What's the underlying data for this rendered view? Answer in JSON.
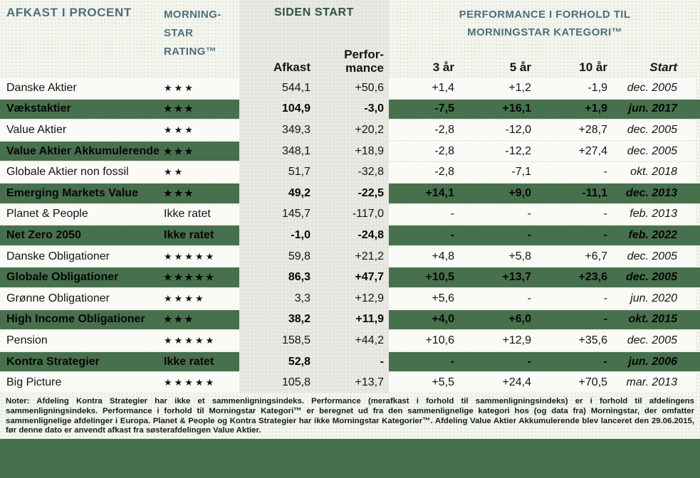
{
  "header": {
    "afkast_title": "AFKAST I PROCENT",
    "rating_title": "MORNING-\nSTAR\nRATING™",
    "siden_start_title": "SIDEN START",
    "performance_group_title": "PERFORMANCE I FORHOLD TIL\nMORNINGSTAR KATEGORI™",
    "sub": {
      "afkast": "Afkast",
      "performance": "Perfor-\nmance",
      "y3": "3 år",
      "y5": "5 år",
      "y10": "10 år",
      "start": "Start"
    }
  },
  "table": {
    "rows": [
      {
        "name": "Danske Aktier",
        "rating": "★★★",
        "afkast": "544,1",
        "performance": "+50,6",
        "y3": "+1,4",
        "y5": "+1,2",
        "y10": "-1,9",
        "start": "dec. 2005",
        "highlight": "none"
      },
      {
        "name": "Vækstaktier",
        "rating": "★★★",
        "afkast": "104,9",
        "performance": "-3,0",
        "y3": "-7,5",
        "y5": "+16,1",
        "y10": "+1,9",
        "start": "jun. 2017",
        "highlight": "green"
      },
      {
        "name": "Value Aktier",
        "rating": "★★★",
        "afkast": "349,3",
        "performance": "+20,2",
        "y3": "-2,8",
        "y5": "-12,0",
        "y10": "+28,7",
        "start": "dec. 2005",
        "highlight": "none"
      },
      {
        "name": "Value Aktier Akkumulerende",
        "rating": "★★★",
        "afkast": "348,1",
        "performance": "+18,9",
        "y3": "-2,8",
        "y5": "-12,2",
        "y10": "+27,4",
        "start": "dec. 2005",
        "highlight": "green-left"
      },
      {
        "name": "Globale Aktier non fossil",
        "rating": "★★",
        "afkast": "51,7",
        "performance": "-32,8",
        "y3": "-2,8",
        "y5": "-7,1",
        "y10": "-",
        "start": "okt. 2018",
        "highlight": "none"
      },
      {
        "name": "Emerging Markets Value",
        "rating": "★★★",
        "afkast": "49,2",
        "performance": "-22,5",
        "y3": "+14,1",
        "y5": "+9,0",
        "y10": "-11,1",
        "start": "dec. 2013",
        "highlight": "green"
      },
      {
        "name": "Planet & People",
        "rating": "Ikke ratet",
        "afkast": "145,7",
        "performance": "-117,0",
        "y3": "-",
        "y5": "-",
        "y10": "-",
        "start": "feb. 2013",
        "highlight": "none"
      },
      {
        "name": "Net Zero 2050",
        "rating": "Ikke ratet",
        "afkast": "-1,0",
        "performance": "-24,8",
        "y3": "-",
        "y5": "-",
        "y10": "-",
        "start": "feb. 2022",
        "highlight": "green"
      },
      {
        "name": "Danske Obligationer",
        "rating": "★★★★★",
        "afkast": "59,8",
        "performance": "+21,2",
        "y3": "+4,8",
        "y5": "+5,8",
        "y10": "+6,7",
        "start": "dec. 2005",
        "highlight": "none"
      },
      {
        "name": "Globale Obligationer",
        "rating": "★★★★★",
        "afkast": "86,3",
        "performance": "+47,7",
        "y3": "+10,5",
        "y5": "+13,7",
        "y10": "+23,6",
        "start": "dec. 2005",
        "highlight": "green"
      },
      {
        "name": "Grønne Obligationer",
        "rating": "★★★★",
        "afkast": "3,3",
        "performance": "+12,9",
        "y3": "+5,6",
        "y5": "-",
        "y10": "-",
        "start": "jun. 2020",
        "highlight": "none"
      },
      {
        "name": "High Income Obligationer",
        "rating": "★★★",
        "afkast": "38,2",
        "performance": "+11,9",
        "y3": "+4,0",
        "y5": "+6,0",
        "y10": "-",
        "start": "okt. 2015",
        "highlight": "green"
      },
      {
        "name": "Pension",
        "rating": "★★★★★",
        "afkast": "158,5",
        "performance": "+44,2",
        "y3": "+10,6",
        "y5": "+12,9",
        "y10": "+35,6",
        "start": "dec. 2005",
        "highlight": "none"
      },
      {
        "name": "Kontra Strategier",
        "rating": "Ikke ratet",
        "afkast": "52,8",
        "performance": "-",
        "y3": "-",
        "y5": "-",
        "y10": "-",
        "start": "jun. 2006",
        "highlight": "green"
      },
      {
        "name": "Big Picture",
        "rating": "★★★★★",
        "afkast": "105,8",
        "performance": "+13,7",
        "y3": "+5,5",
        "y5": "+24,4",
        "y10": "+70,5",
        "start": "mar. 2013",
        "highlight": "none"
      }
    ]
  },
  "notes": "Noter: Afdeling Kontra Strategier har ikke et sammenligningsindeks. Performance (merafkast i forhold til sammenligningsindeks) er i forhold til afdelingens sammenligningsindeks. Performance i forhold til Morningstar Kategori™ er beregnet ud fra den sammenlignelige kategori hos (og data fra) Morningstar, der omfatter sammenlignelige afdelinger i Europa. Planet & People og Kontra Strategier har ikke Morningstar Kategorier™. Afdeling Value Aktier Akkumulerende blev lanceret den 29.06.2015, før denne dato er anvendt afkast fra søsterafdelingen Value Aktier.",
  "colors": {
    "green": "#47704d",
    "band": "#e7e9e2",
    "row_white": "#fafbf7",
    "page_bg": "#f3f5ee",
    "header_slate": "#4e6f7b",
    "siden_start": "#2d4f49",
    "notes": "#122019"
  }
}
